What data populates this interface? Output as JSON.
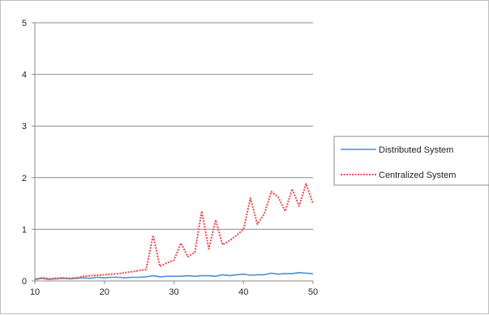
{
  "chart_data": {
    "type": "line",
    "title": "",
    "xlabel": "",
    "ylabel": "",
    "xlim": [
      10,
      50
    ],
    "ylim": [
      0,
      5
    ],
    "x_ticks": [
      "10",
      "20",
      "30",
      "40",
      "50"
    ],
    "y_ticks": [
      "0",
      "1",
      "2",
      "3",
      "4",
      "5"
    ],
    "grid": "horizontal",
    "legend_position": "right",
    "series": [
      {
        "name": "Distributed System",
        "color": "#4f8ed0",
        "style": "solid",
        "x": [
          10,
          11,
          12,
          13,
          14,
          15,
          16,
          17,
          18,
          19,
          20,
          21,
          22,
          23,
          24,
          25,
          26,
          27,
          28,
          29,
          30,
          31,
          32,
          33,
          34,
          35,
          36,
          37,
          38,
          39,
          40,
          41,
          42,
          43,
          44,
          45,
          46,
          47,
          48,
          49,
          50
        ],
        "y": [
          0.03,
          0.05,
          0.03,
          0.04,
          0.05,
          0.04,
          0.05,
          0.06,
          0.05,
          0.07,
          0.06,
          0.07,
          0.07,
          0.06,
          0.07,
          0.07,
          0.08,
          0.1,
          0.08,
          0.09,
          0.09,
          0.09,
          0.1,
          0.09,
          0.1,
          0.1,
          0.09,
          0.12,
          0.1,
          0.12,
          0.13,
          0.11,
          0.12,
          0.12,
          0.15,
          0.13,
          0.14,
          0.14,
          0.16,
          0.15,
          0.14
        ]
      },
      {
        "name": "Centralized System",
        "color": "#e8484d",
        "style": "dashed",
        "x": [
          10,
          11,
          12,
          13,
          14,
          15,
          16,
          17,
          18,
          19,
          20,
          21,
          22,
          23,
          24,
          25,
          26,
          27,
          28,
          29,
          30,
          31,
          32,
          33,
          34,
          35,
          36,
          37,
          38,
          39,
          40,
          41,
          42,
          43,
          44,
          45,
          46,
          47,
          48,
          49,
          50
        ],
        "y": [
          0.03,
          0.06,
          0.04,
          0.05,
          0.06,
          0.05,
          0.06,
          0.09,
          0.1,
          0.11,
          0.12,
          0.13,
          0.14,
          0.16,
          0.18,
          0.2,
          0.22,
          0.88,
          0.28,
          0.35,
          0.4,
          0.73,
          0.47,
          0.55,
          1.35,
          0.62,
          1.18,
          0.7,
          0.78,
          0.88,
          1.0,
          1.6,
          1.1,
          1.3,
          1.73,
          1.62,
          1.35,
          1.78,
          1.45,
          1.88,
          1.5
        ]
      }
    ]
  }
}
